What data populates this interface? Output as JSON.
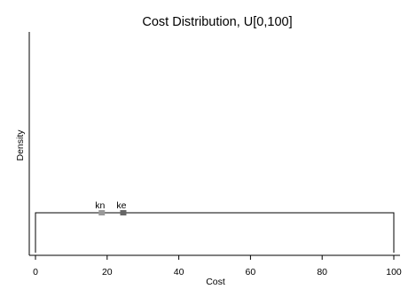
{
  "chart_data": {
    "type": "line",
    "title": "Cost Distribution, U[0,100]",
    "xlabel": "Cost",
    "ylabel": "Density",
    "xlim": [
      0,
      100
    ],
    "xticks": [
      0,
      20,
      40,
      60,
      80,
      100
    ],
    "x_tick_labels": [
      "0",
      "20",
      "40",
      "60",
      "80",
      "100"
    ],
    "y_ticks_shown": false,
    "grid": false,
    "series": [
      {
        "kind": "uniform-density",
        "x": [
          0,
          0,
          100,
          100
        ],
        "y": [
          0,
          1,
          1,
          0
        ]
      }
    ],
    "markers": [
      {
        "label": "kn",
        "x": 18.5,
        "color": "#999999"
      },
      {
        "label": "ke",
        "x": 24.5,
        "color": "#666666"
      }
    ]
  }
}
